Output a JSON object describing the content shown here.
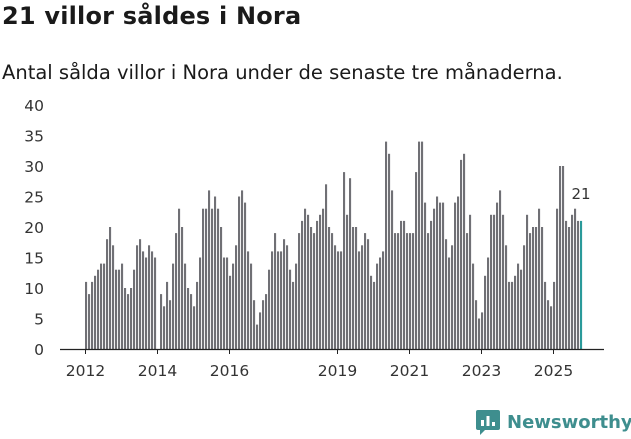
{
  "header": {
    "title": "21 villor såldes i Nora",
    "subtitle": "Antal sålda villor i Nora under de senaste tre månaderna."
  },
  "brand": {
    "name": "Newsworthy",
    "icon": "newsworthy-logo-icon"
  },
  "colors": {
    "bar": "#707075",
    "highlight": "#2a9a9a",
    "axis": "#222222",
    "text": "#333333"
  },
  "chart_data": {
    "type": "bar",
    "title": "21 villor såldes i Nora",
    "subtitle": "Antal sålda villor i Nora under de senaste tre månaderna.",
    "xlabel": "",
    "ylabel": "",
    "ylim": [
      0,
      40
    ],
    "yticks": [
      0,
      5,
      10,
      15,
      20,
      25,
      30,
      35,
      40
    ],
    "grid": false,
    "series_name": "Antal sålda villor (rullande tre månader)",
    "x_axis": {
      "start": "2012-01",
      "ticks": [
        {
          "label": "2012",
          "month_index": 0
        },
        {
          "label": "2014",
          "month_index": 24
        },
        {
          "label": "2016",
          "month_index": 48
        },
        {
          "label": "2019",
          "month_index": 84
        },
        {
          "label": "2021",
          "month_index": 108
        },
        {
          "label": "2023",
          "month_index": 132
        },
        {
          "label": "2025",
          "month_index": 156
        }
      ]
    },
    "values": [
      11,
      9,
      11,
      12,
      13,
      14,
      14,
      18,
      20,
      17,
      13,
      13,
      14,
      10,
      9,
      10,
      13,
      17,
      18,
      16,
      15,
      17,
      16,
      15,
      0,
      9,
      7,
      11,
      8,
      14,
      19,
      23,
      20,
      14,
      10,
      9,
      7,
      11,
      15,
      23,
      23,
      26,
      23,
      25,
      23,
      20,
      15,
      15,
      12,
      14,
      17,
      25,
      26,
      24,
      16,
      14,
      8,
      4,
      6,
      8,
      9,
      13,
      16,
      19,
      16,
      16,
      18,
      17,
      13,
      11,
      14,
      19,
      21,
      23,
      22,
      20,
      19,
      21,
      22,
      23,
      27,
      20,
      19,
      17,
      16,
      16,
      29,
      22,
      28,
      20,
      20,
      16,
      17,
      19,
      18,
      12,
      11,
      14,
      15,
      16,
      34,
      32,
      26,
      19,
      19,
      21,
      21,
      19,
      19,
      19,
      29,
      34,
      34,
      24,
      19,
      21,
      23,
      25,
      24,
      24,
      18,
      15,
      17,
      24,
      25,
      31,
      32,
      19,
      22,
      14,
      8,
      5,
      6,
      12,
      15,
      22,
      22,
      24,
      26,
      22,
      17,
      11,
      11,
      12,
      14,
      13,
      17,
      22,
      19,
      20,
      20,
      23,
      20,
      11,
      8,
      7,
      11,
      23,
      30,
      30,
      21,
      20,
      22,
      23,
      21,
      21
    ],
    "highlight": {
      "value": 21,
      "label": "21"
    }
  }
}
